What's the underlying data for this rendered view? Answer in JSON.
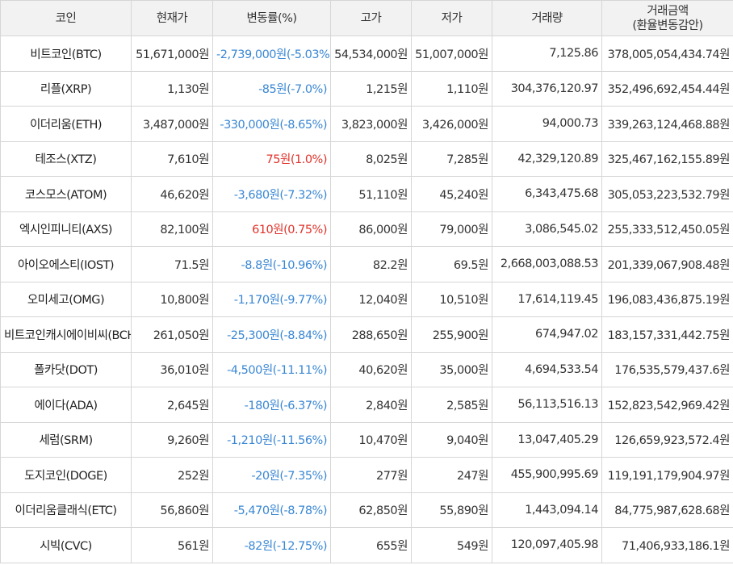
{
  "headers": {
    "coin": "코인",
    "price": "현재가",
    "change": "변동률(%)",
    "high": "고가",
    "low": "저가",
    "volume": "거래량",
    "amount_line1": "거래금액",
    "amount_line2": "(환율변동감안)"
  },
  "colors": {
    "down": "#3a87d4",
    "up": "#e0332b",
    "header_bg": "#f2f2f2",
    "border": "#d6d6d6"
  },
  "rows": [
    {
      "name": "비트코인(BTC)",
      "price": "51,671,000원",
      "change": "-2,739,000원(-5.03%)",
      "direction": "down",
      "high": "54,534,000원",
      "low": "51,007,000원",
      "volume": "7,125.86",
      "amount": "378,005,054,434.74원"
    },
    {
      "name": "리플(XRP)",
      "price": "1,130원",
      "change": "-85원(-7.0%)",
      "direction": "down",
      "high": "1,215원",
      "low": "1,110원",
      "volume": "304,376,120.97",
      "amount": "352,496,692,454.44원"
    },
    {
      "name": "이더리움(ETH)",
      "price": "3,487,000원",
      "change": "-330,000원(-8.65%)",
      "direction": "down",
      "high": "3,823,000원",
      "low": "3,426,000원",
      "volume": "94,000.73",
      "amount": "339,263,124,468.88원"
    },
    {
      "name": "테조스(XTZ)",
      "price": "7,610원",
      "change": "75원(1.0%)",
      "direction": "up",
      "high": "8,025원",
      "low": "7,285원",
      "volume": "42,329,120.89",
      "amount": "325,467,162,155.89원"
    },
    {
      "name": "코스모스(ATOM)",
      "price": "46,620원",
      "change": "-3,680원(-7.32%)",
      "direction": "down",
      "high": "51,110원",
      "low": "45,240원",
      "volume": "6,343,475.68",
      "amount": "305,053,223,532.79원"
    },
    {
      "name": "엑시인피니티(AXS)",
      "price": "82,100원",
      "change": "610원(0.75%)",
      "direction": "up",
      "high": "86,000원",
      "low": "79,000원",
      "volume": "3,086,545.02",
      "amount": "255,333,512,450.05원"
    },
    {
      "name": "아이오에스티(IOST)",
      "price": "71.5원",
      "change": "-8.8원(-10.96%)",
      "direction": "down",
      "high": "82.2원",
      "low": "69.5원",
      "volume": "2,668,003,088.53",
      "amount": "201,339,067,908.48원"
    },
    {
      "name": "오미세고(OMG)",
      "price": "10,800원",
      "change": "-1,170원(-9.77%)",
      "direction": "down",
      "high": "12,040원",
      "low": "10,510원",
      "volume": "17,614,119.45",
      "amount": "196,083,436,875.19원"
    },
    {
      "name": "비트코인캐시에이비씨(BCHA)",
      "price": "261,050원",
      "change": "-25,300원(-8.84%)",
      "direction": "down",
      "high": "288,650원",
      "low": "255,900원",
      "volume": "674,947.02",
      "amount": "183,157,331,442.75원"
    },
    {
      "name": "폴카닷(DOT)",
      "price": "36,010원",
      "change": "-4,500원(-11.11%)",
      "direction": "down",
      "high": "40,620원",
      "low": "35,000원",
      "volume": "4,694,533.54",
      "amount": "176,535,579,437.6원"
    },
    {
      "name": "에이다(ADA)",
      "price": "2,645원",
      "change": "-180원(-6.37%)",
      "direction": "down",
      "high": "2,840원",
      "low": "2,585원",
      "volume": "56,113,516.13",
      "amount": "152,823,542,969.42원"
    },
    {
      "name": "세럼(SRM)",
      "price": "9,260원",
      "change": "-1,210원(-11.56%)",
      "direction": "down",
      "high": "10,470원",
      "low": "9,040원",
      "volume": "13,047,405.29",
      "amount": "126,659,923,572.4원"
    },
    {
      "name": "도지코인(DOGE)",
      "price": "252원",
      "change": "-20원(-7.35%)",
      "direction": "down",
      "high": "277원",
      "low": "247원",
      "volume": "455,900,995.69",
      "amount": "119,191,179,904.97원"
    },
    {
      "name": "이더리움클래식(ETC)",
      "price": "56,860원",
      "change": "-5,470원(-8.78%)",
      "direction": "down",
      "high": "62,850원",
      "low": "55,890원",
      "volume": "1,443,094.14",
      "amount": "84,775,987,628.68원"
    },
    {
      "name": "시빅(CVC)",
      "price": "561원",
      "change": "-82원(-12.75%)",
      "direction": "down",
      "high": "655원",
      "low": "549원",
      "volume": "120,097,405.98",
      "amount": "71,406,933,186.1원"
    }
  ]
}
